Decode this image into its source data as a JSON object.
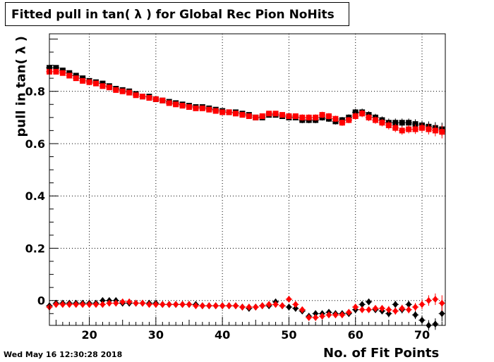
{
  "chart_data": {
    "type": "scatter",
    "title": "Fitted pull in tan( λ ) for Global Rec Pion NoHits",
    "xlabel": "No. of Fit Points",
    "ylabel": "pull in tan( λ )",
    "xlim": [
      14,
      73.5
    ],
    "ylim": [
      -0.095,
      1.02
    ],
    "x_ticks": [
      20,
      30,
      40,
      50,
      60,
      70
    ],
    "y_ticks": [
      0,
      0.2,
      0.4,
      0.6,
      0.8
    ],
    "x_tick_labels": [
      "20",
      "30",
      "40",
      "50",
      "60",
      "70"
    ],
    "y_tick_labels": [
      "0",
      "0.2",
      "0.4",
      "0.6",
      "0.8"
    ],
    "grid": true,
    "colors": {
      "black_series": "#000000",
      "red_series": "#ff0000"
    },
    "x": [
      14,
      15,
      16,
      17,
      18,
      19,
      20,
      21,
      22,
      23,
      24,
      25,
      26,
      27,
      28,
      29,
      30,
      31,
      32,
      33,
      34,
      35,
      36,
      37,
      38,
      39,
      40,
      41,
      42,
      43,
      44,
      45,
      46,
      47,
      48,
      49,
      50,
      51,
      52,
      53,
      54,
      55,
      56,
      57,
      58,
      59,
      60,
      61,
      62,
      63,
      64,
      65,
      66,
      67,
      68,
      69,
      70,
      71,
      72,
      73
    ],
    "series": [
      {
        "marker": "square",
        "color": "#000000",
        "values": [
          0.89,
          0.89,
          0.88,
          0.87,
          0.86,
          0.85,
          0.84,
          0.835,
          0.83,
          0.82,
          0.81,
          0.805,
          0.8,
          0.79,
          0.78,
          0.78,
          0.77,
          0.765,
          0.76,
          0.755,
          0.75,
          0.745,
          0.74,
          0.74,
          0.735,
          0.73,
          0.725,
          0.72,
          0.72,
          0.715,
          0.71,
          0.7,
          0.7,
          0.71,
          0.71,
          0.705,
          0.7,
          0.7,
          0.69,
          0.69,
          0.69,
          0.7,
          0.695,
          0.685,
          0.69,
          0.7,
          0.72,
          0.72,
          0.71,
          0.7,
          0.69,
          0.68,
          0.68,
          0.68,
          0.68,
          0.675,
          0.67,
          0.665,
          0.66,
          0.655
        ],
        "errors": [
          0.008,
          0.008,
          0.008,
          0.008,
          0.008,
          0.008,
          0.008,
          0.008,
          0.008,
          0.008,
          0.008,
          0.008,
          0.008,
          0.008,
          0.008,
          0.008,
          0.008,
          0.008,
          0.008,
          0.008,
          0.008,
          0.008,
          0.008,
          0.008,
          0.008,
          0.008,
          0.008,
          0.008,
          0.008,
          0.008,
          0.008,
          0.008,
          0.01,
          0.01,
          0.01,
          0.01,
          0.01,
          0.01,
          0.012,
          0.012,
          0.012,
          0.012,
          0.012,
          0.012,
          0.012,
          0.012,
          0.014,
          0.014,
          0.014,
          0.014,
          0.014,
          0.016,
          0.016,
          0.016,
          0.016,
          0.018,
          0.018,
          0.02,
          0.022,
          0.025
        ]
      },
      {
        "marker": "square",
        "color": "#ff0000",
        "values": [
          0.875,
          0.875,
          0.87,
          0.86,
          0.85,
          0.84,
          0.835,
          0.83,
          0.82,
          0.815,
          0.805,
          0.8,
          0.795,
          0.785,
          0.78,
          0.775,
          0.77,
          0.765,
          0.755,
          0.75,
          0.745,
          0.74,
          0.735,
          0.735,
          0.73,
          0.725,
          0.72,
          0.72,
          0.715,
          0.71,
          0.705,
          0.7,
          0.705,
          0.715,
          0.715,
          0.71,
          0.705,
          0.705,
          0.7,
          0.7,
          0.7,
          0.71,
          0.705,
          0.695,
          0.68,
          0.69,
          0.705,
          0.715,
          0.7,
          0.69,
          0.68,
          0.67,
          0.66,
          0.65,
          0.655,
          0.655,
          0.66,
          0.655,
          0.65,
          0.645
        ],
        "errors": [
          0.008,
          0.008,
          0.008,
          0.008,
          0.008,
          0.008,
          0.008,
          0.008,
          0.008,
          0.008,
          0.008,
          0.008,
          0.008,
          0.008,
          0.008,
          0.008,
          0.008,
          0.008,
          0.008,
          0.008,
          0.008,
          0.008,
          0.008,
          0.008,
          0.008,
          0.008,
          0.008,
          0.008,
          0.008,
          0.008,
          0.008,
          0.008,
          0.01,
          0.01,
          0.01,
          0.01,
          0.01,
          0.01,
          0.012,
          0.012,
          0.012,
          0.012,
          0.012,
          0.012,
          0.012,
          0.012,
          0.014,
          0.014,
          0.014,
          0.014,
          0.014,
          0.016,
          0.016,
          0.016,
          0.016,
          0.018,
          0.018,
          0.02,
          0.022,
          0.025
        ]
      },
      {
        "marker": "diamond",
        "color": "#000000",
        "values": [
          -0.02,
          -0.01,
          -0.01,
          -0.01,
          -0.01,
          -0.01,
          -0.01,
          -0.01,
          0.0,
          0.0,
          0.0,
          -0.01,
          -0.01,
          -0.01,
          -0.01,
          -0.01,
          -0.01,
          -0.015,
          -0.015,
          -0.015,
          -0.015,
          -0.015,
          -0.015,
          -0.02,
          -0.02,
          -0.02,
          -0.02,
          -0.02,
          -0.02,
          -0.025,
          -0.03,
          -0.025,
          -0.02,
          -0.02,
          -0.005,
          -0.02,
          -0.025,
          -0.03,
          -0.04,
          -0.06,
          -0.05,
          -0.05,
          -0.045,
          -0.05,
          -0.05,
          -0.05,
          -0.035,
          -0.015,
          -0.005,
          -0.035,
          -0.04,
          -0.05,
          -0.015,
          -0.035,
          -0.015,
          -0.055,
          -0.075,
          -0.095,
          -0.09,
          -0.05
        ],
        "errors": [
          0.005,
          0.005,
          0.005,
          0.005,
          0.005,
          0.005,
          0.005,
          0.005,
          0.005,
          0.005,
          0.005,
          0.005,
          0.005,
          0.005,
          0.005,
          0.005,
          0.005,
          0.005,
          0.005,
          0.005,
          0.005,
          0.005,
          0.005,
          0.005,
          0.006,
          0.006,
          0.006,
          0.006,
          0.006,
          0.006,
          0.006,
          0.006,
          0.008,
          0.008,
          0.008,
          0.008,
          0.008,
          0.008,
          0.01,
          0.01,
          0.01,
          0.01,
          0.01,
          0.01,
          0.01,
          0.01,
          0.012,
          0.012,
          0.012,
          0.012,
          0.012,
          0.014,
          0.014,
          0.014,
          0.014,
          0.016,
          0.018,
          0.02,
          0.022,
          0.03
        ]
      },
      {
        "marker": "diamond",
        "color": "#ff0000",
        "values": [
          -0.025,
          -0.015,
          -0.015,
          -0.015,
          -0.015,
          -0.015,
          -0.015,
          -0.015,
          -0.015,
          -0.01,
          -0.01,
          -0.005,
          -0.005,
          -0.01,
          -0.01,
          -0.015,
          -0.015,
          -0.015,
          -0.015,
          -0.015,
          -0.015,
          -0.015,
          -0.02,
          -0.02,
          -0.02,
          -0.02,
          -0.02,
          -0.02,
          -0.02,
          -0.025,
          -0.025,
          -0.025,
          -0.02,
          -0.015,
          -0.015,
          -0.02,
          0.005,
          -0.015,
          -0.035,
          -0.065,
          -0.065,
          -0.06,
          -0.055,
          -0.055,
          -0.055,
          -0.045,
          -0.025,
          -0.035,
          -0.035,
          -0.03,
          -0.03,
          -0.035,
          -0.04,
          -0.03,
          -0.035,
          -0.025,
          -0.015,
          0.0,
          0.005,
          -0.01
        ],
        "errors": [
          0.005,
          0.005,
          0.005,
          0.005,
          0.005,
          0.005,
          0.005,
          0.005,
          0.005,
          0.005,
          0.005,
          0.005,
          0.005,
          0.005,
          0.005,
          0.005,
          0.005,
          0.005,
          0.005,
          0.005,
          0.005,
          0.005,
          0.005,
          0.005,
          0.006,
          0.006,
          0.006,
          0.006,
          0.006,
          0.006,
          0.006,
          0.006,
          0.008,
          0.008,
          0.008,
          0.008,
          0.008,
          0.008,
          0.01,
          0.01,
          0.01,
          0.01,
          0.01,
          0.01,
          0.01,
          0.01,
          0.012,
          0.012,
          0.012,
          0.012,
          0.012,
          0.014,
          0.014,
          0.014,
          0.014,
          0.016,
          0.018,
          0.02,
          0.022,
          0.03
        ]
      }
    ]
  },
  "footer": {
    "timestamp": "Wed May 16 12:30:28 2018"
  }
}
